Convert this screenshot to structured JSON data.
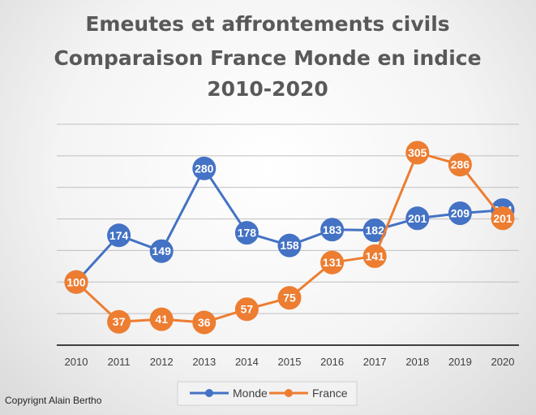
{
  "chart_data": {
    "type": "line",
    "title_lines": [
      "Emeutes et affrontements civils",
      "Comparaison France Monde en indice",
      "2010-2020"
    ],
    "categories": [
      "2010",
      "2011",
      "2012",
      "2013",
      "2014",
      "2015",
      "2016",
      "2017",
      "2018",
      "2019",
      "2020"
    ],
    "series": [
      {
        "name": "Monde",
        "color": "#4472c4",
        "values": [
          100,
          174,
          149,
          280,
          178,
          158,
          183,
          182,
          201,
          209,
          214
        ],
        "labels": [
          "",
          "174",
          "149",
          "280",
          "178",
          "158",
          "183",
          "182",
          "201",
          "209",
          "214"
        ]
      },
      {
        "name": "France",
        "color": "#ed7d31",
        "values": [
          100,
          37,
          41,
          36,
          57,
          75,
          131,
          141,
          305,
          286,
          201
        ],
        "labels": [
          "100",
          "37",
          "41",
          "36",
          "57",
          "75",
          "131",
          "141",
          "305",
          "286",
          "201"
        ]
      }
    ],
    "ylim": [
      0,
      350
    ],
    "grid": true,
    "legend_position": "bottom",
    "axis_color": "#404040",
    "grid_color": "#bfbfbf"
  },
  "footer": {
    "copyright": "Copyrignt Alain Bertho"
  }
}
